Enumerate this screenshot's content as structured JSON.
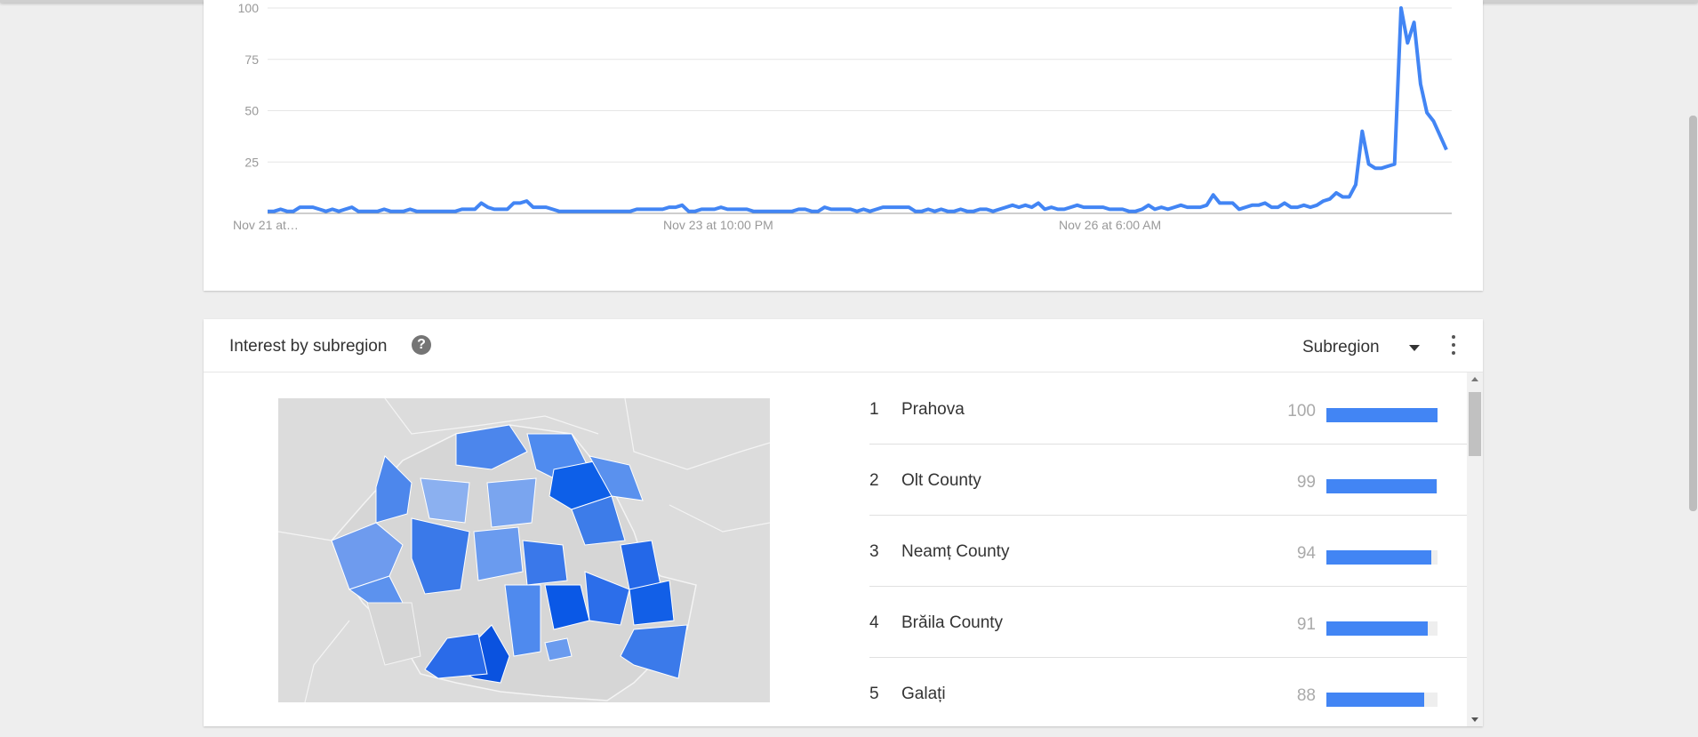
{
  "chart_data": {
    "type": "line",
    "title": "",
    "xlabel": "",
    "ylabel": "",
    "ylim": [
      0,
      100
    ],
    "yticks": [
      25,
      50,
      75,
      100
    ],
    "xtick_labels": [
      "Nov 21 at…",
      "Nov 23 at 10:00 PM",
      "Nov 26 at 6:00 AM"
    ],
    "grid": true,
    "color": "#4285f4",
    "values": [
      1,
      1,
      2,
      1,
      1,
      3,
      3,
      3,
      2,
      1,
      2,
      1,
      2,
      3,
      1,
      1,
      1,
      1,
      2,
      1,
      1,
      1,
      2,
      1,
      1,
      1,
      1,
      1,
      1,
      1,
      2,
      2,
      2,
      5,
      3,
      2,
      2,
      2,
      5,
      5,
      6,
      3,
      3,
      3,
      2,
      1,
      1,
      1,
      1,
      1,
      1,
      1,
      1,
      1,
      1,
      1,
      1,
      2,
      2,
      2,
      2,
      2,
      3,
      3,
      4,
      1,
      1,
      2,
      2,
      2,
      3,
      2,
      2,
      2,
      2,
      1,
      1,
      1,
      1,
      1,
      1,
      1,
      2,
      2,
      1,
      1,
      3,
      2,
      2,
      2,
      2,
      1,
      2,
      1,
      2,
      3,
      3,
      3,
      3,
      3,
      1,
      1,
      2,
      1,
      2,
      1,
      1,
      2,
      1,
      1,
      2,
      2,
      1,
      2,
      3,
      4,
      3,
      4,
      3,
      5,
      2,
      3,
      2,
      2,
      3,
      4,
      3,
      3,
      3,
      3,
      2,
      2,
      2,
      1,
      1,
      2,
      4,
      2,
      3,
      2,
      3,
      4,
      3,
      3,
      3,
      4,
      9,
      5,
      5,
      5,
      2,
      3,
      4,
      4,
      5,
      3,
      3,
      5,
      3,
      3,
      4,
      3,
      4,
      6,
      7,
      10,
      8,
      8,
      14,
      40,
      24,
      22,
      22,
      23,
      24,
      100,
      83,
      93,
      63,
      49,
      45,
      38,
      31
    ]
  },
  "region_panel": {
    "title": "Interest by subregion",
    "help_icon": "help-icon",
    "selector_label": "Subregion",
    "more_icon": "more-vert-icon",
    "bar_color": "#4285f4",
    "rows": [
      {
        "rank": "1",
        "name": "Prahova",
        "value": "100",
        "level": 100
      },
      {
        "rank": "2",
        "name": "Olt County",
        "value": "99",
        "level": 99
      },
      {
        "rank": "3",
        "name": "Neamț County",
        "value": "94",
        "level": 94
      },
      {
        "rank": "4",
        "name": "Brăila County",
        "value": "91",
        "level": 91
      },
      {
        "rank": "5",
        "name": "Galați",
        "value": "88",
        "level": 88
      }
    ]
  }
}
